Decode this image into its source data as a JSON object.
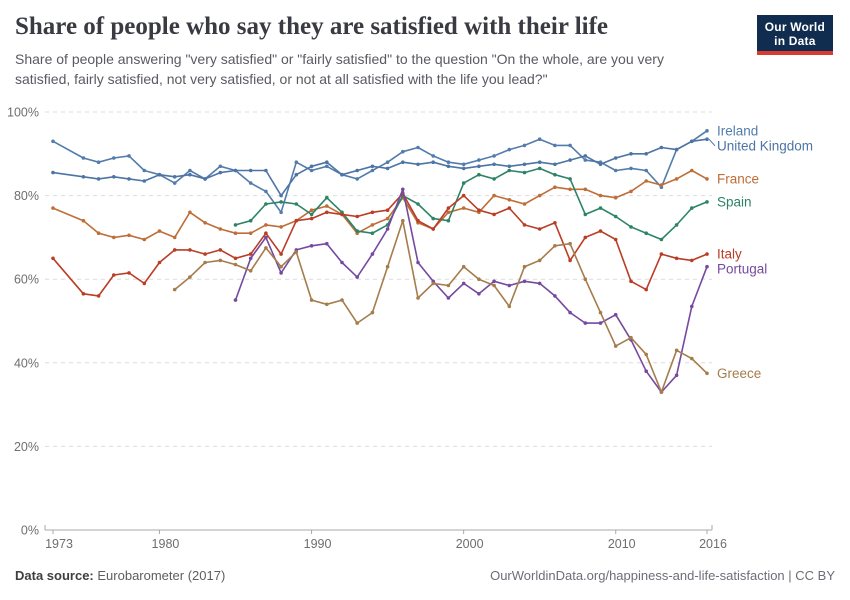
{
  "header": {
    "title": "Share of people who say they are satisfied with their life",
    "subtitle": "Share of people answering \"very satisfied\" or \"fairly satisfied\" to the question \"On the whole, are you very satisfied, fairly satisfied, not very satisfied, or not at all satisfied with the life you lead?\""
  },
  "logo": {
    "line1": "Our World",
    "line2": "in Data",
    "bg_color": "#102d50",
    "accent_color": "#d93b31"
  },
  "footer": {
    "source_label": "Data source:",
    "source_value": "Eurobarometer (2017)",
    "link": "OurWorldinData.org/happiness-and-life-satisfaction | CC BY"
  },
  "chart_data": {
    "type": "line",
    "title": "Share of people who say they are satisfied with their life",
    "xlabel": "",
    "ylabel": "",
    "xlim": [
      1973,
      2016
    ],
    "ylim": [
      0,
      100
    ],
    "x_ticks": [
      1973,
      1980,
      1990,
      2000,
      2010,
      2016
    ],
    "y_ticks": [
      0,
      20,
      40,
      60,
      80,
      100
    ],
    "y_tick_suffix": "%",
    "grid": "horizontal-dashed",
    "legend_position": "right-of-line-ends",
    "marker": "dot",
    "axis_color": "#a8a8a8",
    "grid_color": "#dcdcdc",
    "tick_label_color": "#6e6e6e",
    "series": [
      {
        "name": "Ireland",
        "color": "#537cab",
        "points": [
          [
            1973,
            93
          ],
          [
            1975,
            89
          ],
          [
            1976,
            88
          ],
          [
            1977,
            89
          ],
          [
            1978,
            89.5
          ],
          [
            1979,
            86
          ],
          [
            1980,
            85
          ],
          [
            1981,
            83
          ],
          [
            1982,
            86
          ],
          [
            1983,
            84
          ],
          [
            1984,
            87
          ],
          [
            1985,
            86
          ],
          [
            1986,
            83
          ],
          [
            1987,
            81
          ],
          [
            1988,
            76
          ],
          [
            1989,
            88
          ],
          [
            1990,
            86
          ],
          [
            1991,
            87
          ],
          [
            1992,
            85
          ],
          [
            1993,
            84
          ],
          [
            1994,
            86
          ],
          [
            1995,
            88
          ],
          [
            1996,
            90.5
          ],
          [
            1997,
            91.5
          ],
          [
            1998,
            89.5
          ],
          [
            1999,
            88
          ],
          [
            2000,
            87.5
          ],
          [
            2001,
            88.5
          ],
          [
            2002,
            89.5
          ],
          [
            2003,
            91
          ],
          [
            2004,
            92
          ],
          [
            2005,
            93.5
          ],
          [
            2006,
            92
          ],
          [
            2007,
            92
          ],
          [
            2008,
            88.5
          ],
          [
            2009,
            88
          ],
          [
            2010,
            86
          ],
          [
            2011,
            86.5
          ],
          [
            2012,
            86
          ],
          [
            2013,
            82
          ],
          [
            2014,
            91
          ],
          [
            2015,
            93
          ],
          [
            2016,
            95.5
          ]
        ]
      },
      {
        "name": "United Kingdom",
        "color": "#4c74a4",
        "points": [
          [
            1973,
            85.5
          ],
          [
            1975,
            84.5
          ],
          [
            1976,
            84
          ],
          [
            1977,
            84.5
          ],
          [
            1978,
            84
          ],
          [
            1979,
            83.5
          ],
          [
            1980,
            85
          ],
          [
            1981,
            84.5
          ],
          [
            1982,
            85
          ],
          [
            1983,
            84
          ],
          [
            1984,
            85.5
          ],
          [
            1985,
            86
          ],
          [
            1986,
            86
          ],
          [
            1987,
            86
          ],
          [
            1988,
            80
          ],
          [
            1989,
            85
          ],
          [
            1990,
            87
          ],
          [
            1991,
            88
          ],
          [
            1992,
            85
          ],
          [
            1993,
            86
          ],
          [
            1994,
            87
          ],
          [
            1995,
            86.5
          ],
          [
            1996,
            88
          ],
          [
            1997,
            87.5
          ],
          [
            1998,
            88
          ],
          [
            1999,
            87
          ],
          [
            2000,
            86.5
          ],
          [
            2001,
            87
          ],
          [
            2002,
            87.5
          ],
          [
            2003,
            87
          ],
          [
            2004,
            87.5
          ],
          [
            2005,
            88
          ],
          [
            2006,
            87.5
          ],
          [
            2007,
            88.5
          ],
          [
            2008,
            89.5
          ],
          [
            2009,
            87.5
          ],
          [
            2010,
            89
          ],
          [
            2011,
            90
          ],
          [
            2012,
            90
          ],
          [
            2013,
            91.5
          ],
          [
            2014,
            91
          ],
          [
            2015,
            93
          ],
          [
            2016,
            93.5
          ]
        ]
      },
      {
        "name": "France",
        "color": "#be6e38",
        "points": [
          [
            1973,
            77
          ],
          [
            1975,
            74
          ],
          [
            1976,
            71
          ],
          [
            1977,
            70
          ],
          [
            1978,
            70.5
          ],
          [
            1979,
            69.5
          ],
          [
            1980,
            71.5
          ],
          [
            1981,
            70
          ],
          [
            1982,
            76
          ],
          [
            1983,
            73.5
          ],
          [
            1984,
            72
          ],
          [
            1985,
            71
          ],
          [
            1986,
            71
          ],
          [
            1987,
            73
          ],
          [
            1988,
            72.5
          ],
          [
            1989,
            74
          ],
          [
            1990,
            76.5
          ],
          [
            1991,
            77.5
          ],
          [
            1992,
            75.5
          ],
          [
            1993,
            71
          ],
          [
            1994,
            73
          ],
          [
            1995,
            74.5
          ],
          [
            1996,
            79.5
          ],
          [
            1997,
            73.5
          ],
          [
            1998,
            72
          ],
          [
            1999,
            76
          ],
          [
            2000,
            77
          ],
          [
            2001,
            76
          ],
          [
            2002,
            80
          ],
          [
            2003,
            79
          ],
          [
            2004,
            78
          ],
          [
            2005,
            80
          ],
          [
            2006,
            82
          ],
          [
            2007,
            81.5
          ],
          [
            2008,
            81.5
          ],
          [
            2009,
            80
          ],
          [
            2010,
            79.5
          ],
          [
            2011,
            81
          ],
          [
            2012,
            83.5
          ],
          [
            2013,
            82.5
          ],
          [
            2014,
            84
          ],
          [
            2015,
            86
          ],
          [
            2016,
            84
          ]
        ]
      },
      {
        "name": "Spain",
        "color": "#2c8465",
        "points": [
          [
            1985,
            73
          ],
          [
            1986,
            74
          ],
          [
            1987,
            78
          ],
          [
            1988,
            78.5
          ],
          [
            1989,
            78
          ],
          [
            1990,
            75.5
          ],
          [
            1991,
            79.5
          ],
          [
            1992,
            76
          ],
          [
            1993,
            71.5
          ],
          [
            1994,
            71
          ],
          [
            1995,
            73
          ],
          [
            1996,
            80
          ],
          [
            1997,
            78
          ],
          [
            1998,
            74.5
          ],
          [
            1999,
            74
          ],
          [
            2000,
            83
          ],
          [
            2001,
            85
          ],
          [
            2002,
            84
          ],
          [
            2003,
            86
          ],
          [
            2004,
            85.5
          ],
          [
            2005,
            86.5
          ],
          [
            2006,
            85
          ],
          [
            2007,
            84
          ],
          [
            2008,
            75.5
          ],
          [
            2009,
            77
          ],
          [
            2010,
            75
          ],
          [
            2011,
            72.5
          ],
          [
            2012,
            71
          ],
          [
            2013,
            69.5
          ],
          [
            2014,
            73
          ],
          [
            2015,
            77
          ],
          [
            2016,
            78.5
          ]
        ]
      },
      {
        "name": "Italy",
        "color": "#ba3d26",
        "points": [
          [
            1973,
            65
          ],
          [
            1975,
            56.5
          ],
          [
            1976,
            56
          ],
          [
            1977,
            61
          ],
          [
            1978,
            61.5
          ],
          [
            1979,
            59
          ],
          [
            1980,
            64
          ],
          [
            1981,
            67
          ],
          [
            1982,
            67
          ],
          [
            1983,
            66
          ],
          [
            1984,
            67
          ],
          [
            1985,
            65
          ],
          [
            1986,
            66
          ],
          [
            1987,
            71
          ],
          [
            1988,
            66
          ],
          [
            1989,
            74
          ],
          [
            1990,
            74.5
          ],
          [
            1991,
            76
          ],
          [
            1992,
            75.5
          ],
          [
            1993,
            75
          ],
          [
            1994,
            76
          ],
          [
            1995,
            76.5
          ],
          [
            1996,
            80.5
          ],
          [
            1997,
            74
          ],
          [
            1998,
            72
          ],
          [
            1999,
            77
          ],
          [
            2000,
            80
          ],
          [
            2001,
            76.5
          ],
          [
            2002,
            75.5
          ],
          [
            2003,
            77
          ],
          [
            2004,
            73
          ],
          [
            2005,
            72
          ],
          [
            2006,
            73.5
          ],
          [
            2007,
            64.5
          ],
          [
            2008,
            70
          ],
          [
            2009,
            71.5
          ],
          [
            2010,
            69.5
          ],
          [
            2011,
            59.5
          ],
          [
            2012,
            57.5
          ],
          [
            2013,
            66
          ],
          [
            2014,
            65
          ],
          [
            2015,
            64.5
          ],
          [
            2016,
            66
          ]
        ]
      },
      {
        "name": "Portugal",
        "color": "#7649a0",
        "points": [
          [
            1985,
            55
          ],
          [
            1986,
            65
          ],
          [
            1987,
            70
          ],
          [
            1988,
            61.5
          ],
          [
            1989,
            67
          ],
          [
            1990,
            68
          ],
          [
            1991,
            68.5
          ],
          [
            1992,
            64
          ],
          [
            1993,
            60.5
          ],
          [
            1994,
            66
          ],
          [
            1995,
            72
          ],
          [
            1996,
            81.5
          ],
          [
            1997,
            64
          ],
          [
            1998,
            59.5
          ],
          [
            1999,
            55.5
          ],
          [
            2000,
            59
          ],
          [
            2001,
            56.5
          ],
          [
            2002,
            59.5
          ],
          [
            2003,
            58.5
          ],
          [
            2004,
            59.5
          ],
          [
            2005,
            59
          ],
          [
            2006,
            56
          ],
          [
            2007,
            52
          ],
          [
            2008,
            49.5
          ],
          [
            2009,
            49.5
          ],
          [
            2010,
            51.5
          ],
          [
            2011,
            45.5
          ],
          [
            2012,
            38
          ],
          [
            2013,
            33
          ],
          [
            2014,
            37
          ],
          [
            2015,
            53.5
          ],
          [
            2016,
            63
          ]
        ]
      },
      {
        "name": "Greece",
        "color": "#a57c4b",
        "points": [
          [
            1981,
            57.5
          ],
          [
            1982,
            60.5
          ],
          [
            1983,
            64
          ],
          [
            1984,
            64.5
          ],
          [
            1985,
            63.5
          ],
          [
            1986,
            62
          ],
          [
            1987,
            67.5
          ],
          [
            1988,
            63
          ],
          [
            1989,
            66.5
          ],
          [
            1990,
            55
          ],
          [
            1991,
            54
          ],
          [
            1992,
            55
          ],
          [
            1993,
            49.5
          ],
          [
            1994,
            52
          ],
          [
            1995,
            63
          ],
          [
            1996,
            74
          ],
          [
            1997,
            55.5
          ],
          [
            1998,
            59
          ],
          [
            1999,
            58.5
          ],
          [
            2000,
            63
          ],
          [
            2001,
            60
          ],
          [
            2002,
            58.5
          ],
          [
            2003,
            53.5
          ],
          [
            2004,
            63
          ],
          [
            2005,
            64.5
          ],
          [
            2006,
            68
          ],
          [
            2007,
            68.5
          ],
          [
            2008,
            60
          ],
          [
            2009,
            52
          ],
          [
            2010,
            44
          ],
          [
            2011,
            46
          ],
          [
            2012,
            42
          ],
          [
            2013,
            33
          ],
          [
            2014,
            43
          ],
          [
            2015,
            41
          ],
          [
            2016,
            37.5
          ]
        ]
      }
    ]
  }
}
